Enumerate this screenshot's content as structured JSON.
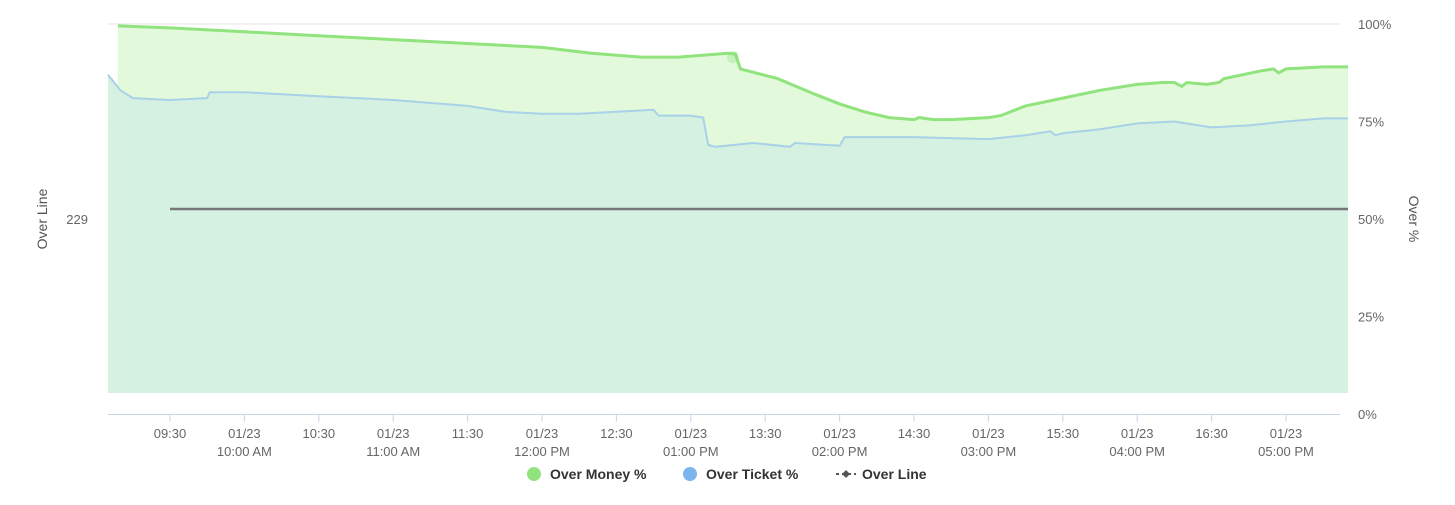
{
  "chart_data": {
    "type": "area",
    "x_axis": {
      "ticks": [
        {
          "time": "09:30",
          "line1": "09:30",
          "line2": ""
        },
        {
          "time": "10:00",
          "line1": "01/23",
          "line2": "10:00 AM"
        },
        {
          "time": "10:30",
          "line1": "10:30",
          "line2": ""
        },
        {
          "time": "11:00",
          "line1": "01/23",
          "line2": "11:00 AM"
        },
        {
          "time": "11:30",
          "line1": "11:30",
          "line2": ""
        },
        {
          "time": "12:00",
          "line1": "01/23",
          "line2": "12:00 PM"
        },
        {
          "time": "12:30",
          "line1": "12:30",
          "line2": ""
        },
        {
          "time": "13:00",
          "line1": "01/23",
          "line2": "01:00 PM"
        },
        {
          "time": "13:30",
          "line1": "13:30",
          "line2": ""
        },
        {
          "time": "14:00",
          "line1": "01/23",
          "line2": "02:00 PM"
        },
        {
          "time": "14:30",
          "line1": "14:30",
          "line2": ""
        },
        {
          "time": "15:00",
          "line1": "01/23",
          "line2": "03:00 PM"
        },
        {
          "time": "15:30",
          "line1": "15:30",
          "line2": ""
        },
        {
          "time": "16:00",
          "line1": "01/23",
          "line2": "04:00 PM"
        },
        {
          "time": "16:30",
          "line1": "16:30",
          "line2": ""
        },
        {
          "time": "17:00",
          "line1": "01/23",
          "line2": "05:00 PM"
        }
      ]
    },
    "y_left": {
      "title": "Over Line",
      "tick_labels": [
        "229"
      ],
      "tick_value": 229
    },
    "y_right": {
      "title": "Over %",
      "tick_labels": [
        "0%",
        "25%",
        "50%",
        "75%",
        "100%"
      ],
      "range": [
        0,
        100
      ]
    },
    "grid": true,
    "legend_position": "bottom-center",
    "series": [
      {
        "name": "Over Money %",
        "color": "#90e37d",
        "fill": "#e2f9dc",
        "points": [
          [
            "09:09",
            99.5
          ],
          [
            "09:30",
            99
          ],
          [
            "10:00",
            98
          ],
          [
            "10:30",
            97
          ],
          [
            "11:00",
            96
          ],
          [
            "11:30",
            95
          ],
          [
            "12:00",
            94
          ],
          [
            "12:20",
            92.5
          ],
          [
            "12:40",
            91.5
          ],
          [
            "12:55",
            91.5
          ],
          [
            "13:15",
            92.5
          ],
          [
            "13:18",
            92.3
          ],
          [
            "13:20",
            88.5
          ],
          [
            "13:35",
            86
          ],
          [
            "13:50",
            82
          ],
          [
            "14:00",
            79.5
          ],
          [
            "14:10",
            77.5
          ],
          [
            "14:20",
            76
          ],
          [
            "14:30",
            75.5
          ],
          [
            "14:32",
            76
          ],
          [
            "14:38",
            75.5
          ],
          [
            "14:45",
            75.5
          ],
          [
            "15:00",
            76
          ],
          [
            "15:05",
            76.5
          ],
          [
            "15:15",
            79
          ],
          [
            "15:30",
            81
          ],
          [
            "15:45",
            83
          ],
          [
            "16:00",
            84.5
          ],
          [
            "16:10",
            85
          ],
          [
            "16:15",
            85
          ],
          [
            "16:18",
            84
          ],
          [
            "16:20",
            85
          ],
          [
            "16:28",
            84.5
          ],
          [
            "16:33",
            85
          ],
          [
            "16:35",
            86
          ],
          [
            "16:50",
            88
          ],
          [
            "16:55",
            88.5
          ],
          [
            "16:57",
            87.5
          ],
          [
            "17:00",
            88.5
          ],
          [
            "17:15",
            89
          ],
          [
            "17:25",
            89
          ]
        ]
      },
      {
        "name": "Over Ticket %",
        "color": "#a9d1e7",
        "fill": "#d4f0e0",
        "points": [
          [
            "09:05",
            87
          ],
          [
            "09:10",
            83
          ],
          [
            "09:15",
            81
          ],
          [
            "09:30",
            80.5
          ],
          [
            "09:45",
            81
          ],
          [
            "09:46",
            82.5
          ],
          [
            "10:00",
            82.5
          ],
          [
            "10:30",
            81.5
          ],
          [
            "11:00",
            80.5
          ],
          [
            "11:30",
            79
          ],
          [
            "11:45",
            77.5
          ],
          [
            "12:00",
            77
          ],
          [
            "12:15",
            77
          ],
          [
            "12:30",
            77.5
          ],
          [
            "12:45",
            78
          ],
          [
            "12:47",
            76.5
          ],
          [
            "13:00",
            76.5
          ],
          [
            "13:05",
            76
          ],
          [
            "13:07",
            69
          ],
          [
            "13:10",
            68.5
          ],
          [
            "13:25",
            69.5
          ],
          [
            "13:40",
            68.5
          ],
          [
            "13:42",
            69.5
          ],
          [
            "14:00",
            68.8
          ],
          [
            "14:02",
            71
          ],
          [
            "14:30",
            71
          ],
          [
            "15:00",
            70.5
          ],
          [
            "15:15",
            71.5
          ],
          [
            "15:25",
            72.5
          ],
          [
            "15:27",
            71.5
          ],
          [
            "15:30",
            72
          ],
          [
            "15:45",
            73
          ],
          [
            "16:00",
            74.5
          ],
          [
            "16:15",
            75
          ],
          [
            "16:30",
            73.5
          ],
          [
            "16:45",
            74
          ],
          [
            "17:00",
            75
          ],
          [
            "17:15",
            75.8
          ],
          [
            "17:25",
            75.8
          ]
        ]
      },
      {
        "name": "Over Line",
        "color": "#777777",
        "points": [
          [
            "09:30",
            229
          ],
          [
            "17:25",
            229
          ]
        ]
      }
    ]
  }
}
